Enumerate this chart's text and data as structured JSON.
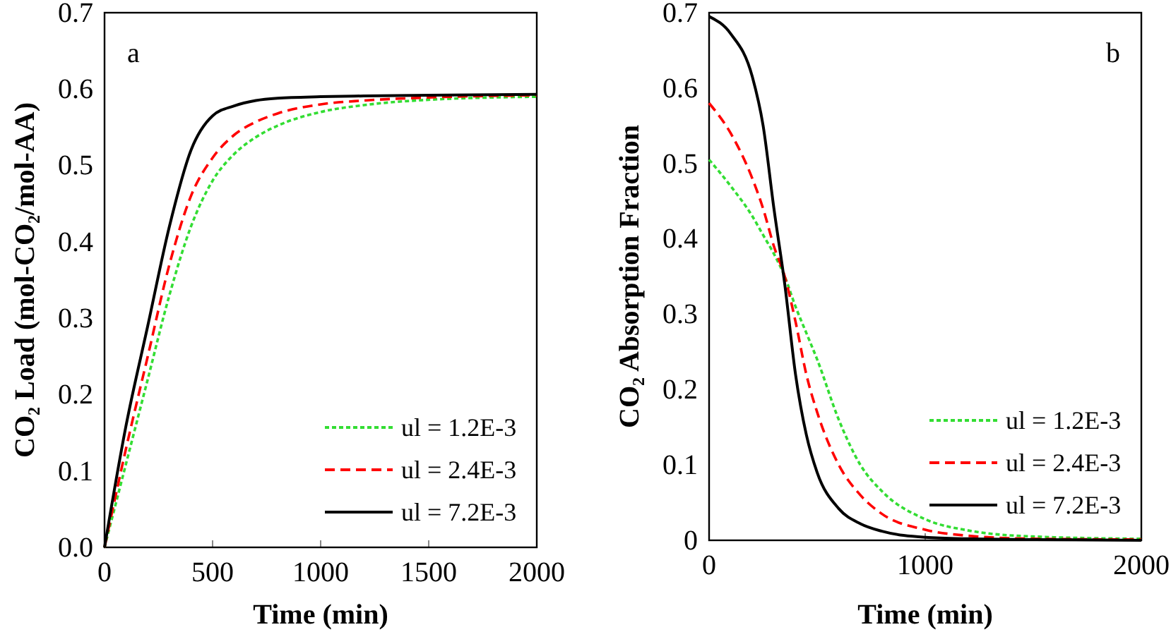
{
  "chart_data": [
    {
      "type": "line",
      "xlabel": "Time (min)",
      "ylabel": "CO₂ Load (mol-CO₂/mol-AA)",
      "annotations": [
        "a"
      ],
      "legend": "bottom right",
      "grid": false,
      "xlim": [
        0,
        2000
      ],
      "xticks": [
        0,
        500,
        1000,
        1500,
        2000
      ],
      "ylim": [
        0,
        0.7
      ],
      "yticks": [
        {
          "value": 0,
          "label": "0.0"
        },
        0.1,
        0.2,
        0.3,
        0.4,
        0.5,
        0.6,
        0.7
      ],
      "x": [
        0,
        100,
        200,
        300,
        400,
        500,
        600,
        700,
        800,
        1000,
        1200,
        1500,
        2000
      ],
      "series": [
        {
          "name": "ul = 1.2E-3",
          "color": "#33dd33",
          "line_style": "dotted",
          "values": [
            0,
            0.11,
            0.22,
            0.33,
            0.42,
            0.48,
            0.515,
            0.537,
            0.552,
            0.57,
            0.579,
            0.586,
            0.59
          ]
        },
        {
          "name": "ul = 2.4E-3",
          "color": "#ff0000",
          "line_style": "dashed",
          "values": [
            0,
            0.13,
            0.25,
            0.37,
            0.46,
            0.51,
            0.54,
            0.557,
            0.568,
            0.58,
            0.585,
            0.589,
            0.592
          ]
        },
        {
          "name": "ul = 7.2E-3",
          "color": "#000000",
          "line_style": "solid",
          "values": [
            0,
            0.16,
            0.29,
            0.42,
            0.52,
            0.565,
            0.578,
            0.585,
            0.588,
            0.59,
            0.591,
            0.592,
            0.593
          ]
        }
      ]
    },
    {
      "type": "line",
      "xlabel": "Time (min)",
      "ylabel": "CO₂ Absorption Fraction",
      "annotations": [
        "b"
      ],
      "legend": "bottom right",
      "grid": false,
      "xlim": [
        0,
        2000
      ],
      "xticks": [
        0,
        1000,
        2000
      ],
      "ylim": [
        0,
        0.7
      ],
      "yticks": [
        0,
        0.1,
        0.2,
        0.3,
        0.4,
        0.5,
        0.6,
        0.7
      ],
      "x": [
        0,
        100,
        200,
        250,
        300,
        350,
        400,
        450,
        500,
        600,
        700,
        800,
        1000,
        1200,
        1500,
        2000
      ],
      "series": [
        {
          "name": "ul = 1.2E-3",
          "color": "#33dd33",
          "line_style": "dotted",
          "values": [
            0.505,
            0.47,
            0.43,
            0.405,
            0.38,
            0.35,
            0.31,
            0.275,
            0.24,
            0.16,
            0.1,
            0.065,
            0.028,
            0.013,
            0.005,
            0.002
          ]
        },
        {
          "name": "ul = 2.4E-3",
          "color": "#ff0000",
          "line_style": "dashed",
          "values": [
            0.58,
            0.54,
            0.48,
            0.44,
            0.39,
            0.35,
            0.29,
            0.22,
            0.17,
            0.1,
            0.06,
            0.035,
            0.014,
            0.006,
            0.002,
            0.001
          ]
        },
        {
          "name": "ul = 7.2E-3",
          "color": "#000000",
          "line_style": "solid",
          "values": [
            0.695,
            0.672,
            0.615,
            0.55,
            0.44,
            0.34,
            0.22,
            0.14,
            0.09,
            0.042,
            0.022,
            0.012,
            0.004,
            0.002,
            0.001,
            0
          ]
        }
      ]
    }
  ]
}
